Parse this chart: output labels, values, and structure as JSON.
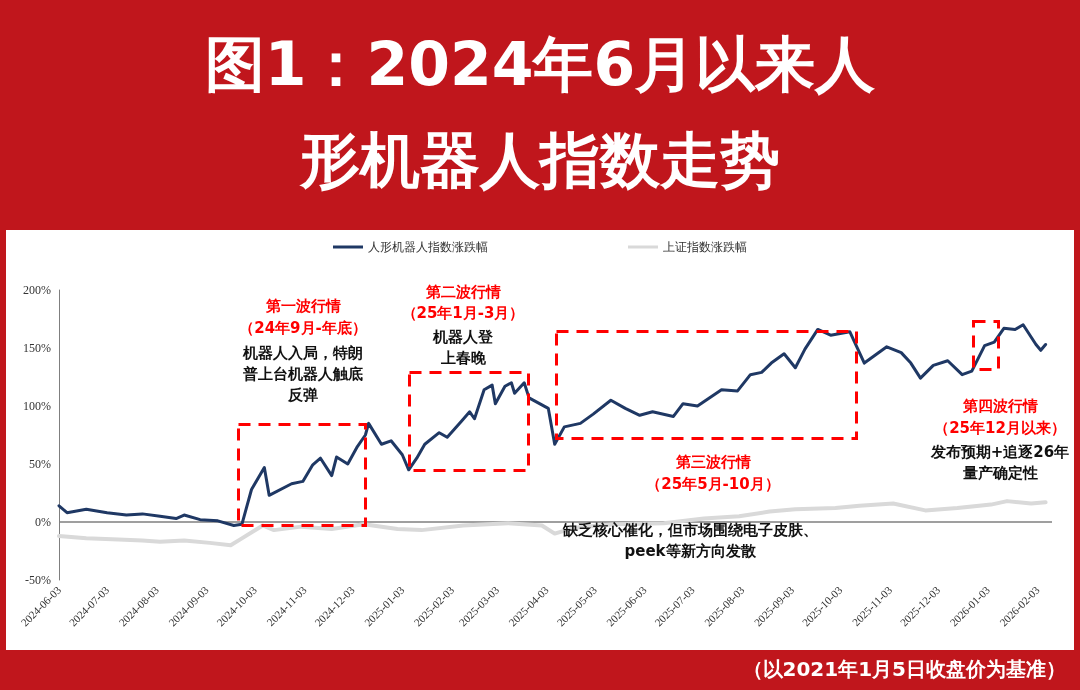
{
  "chart_data": {
    "type": "line",
    "title": "图1：2024年6月以来人形机器人指数走势",
    "series": [
      {
        "name": "人形机器人指数涨跌幅",
        "color": "#1f3864",
        "x": [
          "2024-06-03",
          "2024-06-08",
          "2024-06-20",
          "2024-07-03",
          "2024-07-15",
          "2024-07-25",
          "2024-08-05",
          "2024-08-15",
          "2024-08-20",
          "2024-08-30",
          "2024-09-10",
          "2024-09-20",
          "2024-09-25",
          "2024-10-01",
          "2024-10-09",
          "2024-10-12",
          "2024-10-26",
          "2024-11-02",
          "2024-11-08",
          "2024-11-13",
          "2024-11-20",
          "2024-11-23",
          "2024-11-30",
          "2024-12-06",
          "2024-12-11",
          "2024-12-13",
          "2024-12-21",
          "2024-12-27",
          "2025-01-03",
          "2025-01-07",
          "2025-01-12",
          "2025-01-17",
          "2025-01-26",
          "2025-01-31",
          "2025-02-09",
          "2025-02-14",
          "2025-02-17",
          "2025-02-23",
          "2025-02-28",
          "2025-03-02",
          "2025-03-08",
          "2025-03-12",
          "2025-03-14",
          "2025-03-20",
          "2025-03-23",
          "2025-04-04",
          "2025-04-08",
          "2025-04-14",
          "2025-04-24",
          "2025-05-02",
          "2025-05-13",
          "2025-05-22",
          "2025-05-31",
          "2025-06-08",
          "2025-06-21",
          "2025-06-27",
          "2025-07-06",
          "2025-07-21",
          "2025-07-31",
          "2025-08-08",
          "2025-08-15",
          "2025-08-21",
          "2025-08-29",
          "2025-09-05",
          "2025-09-11",
          "2025-09-19",
          "2025-09-27",
          "2025-10-09",
          "2025-10-18",
          "2025-11-01",
          "2025-11-10",
          "2025-11-16",
          "2025-11-22",
          "2025-11-30",
          "2025-12-09",
          "2025-12-18",
          "2025-12-24",
          "2026-01-01",
          "2026-01-07",
          "2026-01-13",
          "2026-01-20",
          "2026-01-25",
          "2026-02-02",
          "2026-02-05",
          "2026-02-08"
        ],
        "values": [
          14,
          8,
          11,
          8,
          6,
          7,
          5,
          3,
          6,
          2,
          1,
          -3,
          -2,
          28,
          47,
          23,
          33,
          35,
          49,
          55,
          40,
          56,
          50,
          65,
          75,
          85,
          67,
          70,
          58,
          45,
          55,
          67,
          77,
          73,
          87,
          95,
          89,
          114,
          118,
          102,
          117,
          120,
          111,
          120,
          107,
          98,
          67,
          82,
          85,
          93,
          105,
          98,
          92,
          95,
          91,
          102,
          100,
          114,
          113,
          127,
          129,
          137,
          145,
          133,
          149,
          166,
          161,
          164,
          137,
          151,
          146,
          137,
          124,
          135,
          139,
          127,
          130,
          152,
          155,
          167,
          166,
          170,
          153,
          148,
          153
        ]
      },
      {
        "name": "上证指数涨跌幅",
        "color": "#d9d9d9",
        "x": [
          "2024-06-03",
          "2024-06-20",
          "2024-07-10",
          "2024-07-25",
          "2024-08-05",
          "2024-08-20",
          "2024-09-05",
          "2024-09-18",
          "2024-09-24",
          "2024-10-08",
          "2024-10-15",
          "2024-11-01",
          "2024-11-20",
          "2024-12-10",
          "2024-12-31",
          "2025-01-15",
          "2025-02-10",
          "2025-03-10",
          "2025-03-31",
          "2025-04-08",
          "2025-04-20",
          "2025-05-15",
          "2025-06-15",
          "2025-07-10",
          "2025-08-01",
          "2025-08-20",
          "2025-09-05",
          "2025-09-30",
          "2025-10-15",
          "2025-11-05",
          "2025-11-25",
          "2025-12-15",
          "2026-01-05",
          "2026-01-15",
          "2026-01-30",
          "2026-02-08"
        ],
        "values": [
          -12,
          -14,
          -15,
          -16,
          -17,
          -16,
          -18,
          -20,
          -15,
          -3,
          -7,
          -4,
          -6,
          -2,
          -6,
          -7,
          -3,
          -1,
          -3,
          -10,
          -5,
          -2,
          -1,
          3,
          5,
          9,
          11,
          12,
          14,
          16,
          10,
          12,
          15,
          18,
          16,
          17
        ]
      }
    ],
    "xlim": [
      "2024-06-03",
      "2026-02-12"
    ],
    "xticks": [
      "2024-06-03",
      "2024-07-03",
      "2024-08-03",
      "2024-09-03",
      "2024-10-03",
      "2024-11-03",
      "2024-12-03",
      "2025-01-03",
      "2025-02-03",
      "2025-03-03",
      "2025-04-03",
      "2025-05-03",
      "2025-06-03",
      "2025-07-03",
      "2025-08-03",
      "2025-09-03",
      "2025-10-03",
      "2025-11-03",
      "2025-12-03",
      "2026-01-03",
      "2026-02-03"
    ],
    "ylim": [
      -50,
      200
    ],
    "yticks": [
      {
        "value": -50,
        "label": "-50%"
      },
      {
        "value": 0,
        "label": "0%"
      },
      {
        "value": 50,
        "label": "50%"
      },
      {
        "value": 100,
        "label": "100%"
      },
      {
        "value": 150,
        "label": "150%"
      },
      {
        "value": 200,
        "label": "200%"
      }
    ],
    "ref_lines": [
      {
        "axis": "y",
        "value": 0,
        "color": "#7f7f7f"
      }
    ],
    "grid": false,
    "legend": "top",
    "marker": "none",
    "line_style": "solid",
    "annotations": [
      "第一波行情",
      "（24年9月-年底）",
      "机器人入局，特朗普上台机器人触底反弹",
      "第二波行情",
      "（25年1月-3月）",
      "机器人登上春晚",
      "第三波行情",
      "（25年5月-10月）",
      "缺乏核心催化，但市场围绕电子皮肤、peek等新方向发散",
      "第四波行情",
      "（25年12月以来）",
      "发布预期+追逐26年量产确定性",
      "（以2021年1月5日收盘价为基准）"
    ]
  }
}
